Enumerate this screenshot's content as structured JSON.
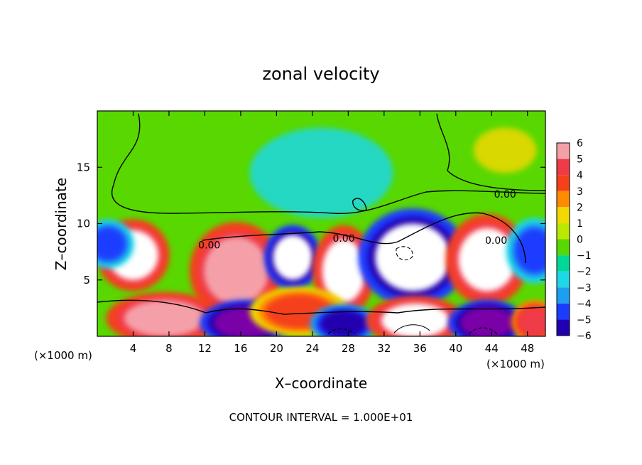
{
  "chart_data": {
    "type": "heatmap",
    "title": "zonal velocity",
    "xlabel": "X–coordinate",
    "ylabel": "Z–coordinate",
    "x_unit": "(×1000 m)",
    "z_unit": "(×1000 m)",
    "xlim": [
      0,
      50
    ],
    "ylim": [
      0,
      20
    ],
    "x_ticks": [
      4,
      8,
      12,
      16,
      20,
      24,
      28,
      32,
      36,
      40,
      44,
      48
    ],
    "y_ticks": [
      5,
      10,
      15
    ],
    "colorbar": {
      "levels": [
        6,
        5,
        4,
        3,
        2,
        1,
        0,
        -1,
        -2,
        -3,
        -4,
        -5,
        -6
      ],
      "colors": [
        "#f5a0a8",
        "#f03a48",
        "#f5401a",
        "#ff8c00",
        "#f0d800",
        "#bce800",
        "#58d800",
        "#00d898",
        "#1ed8e6",
        "#1e9ef0",
        "#1a3cff",
        "#2000b0",
        "#7a00a8"
      ]
    },
    "contour_labels": [
      {
        "text": "0.00",
        "x": 45.5,
        "z": 12.3
      },
      {
        "text": "0.00",
        "x": 27.5,
        "z": 8.4
      },
      {
        "text": "0.00",
        "x": 44.5,
        "z": 8.2
      },
      {
        "text": "0.00",
        "x": 12.5,
        "z": 7.8
      }
    ],
    "contour_interval": "CONTOUR INTERVAL = 1.000E+01",
    "cells": [
      {
        "x": 4,
        "z": 7.2,
        "rx": 2.8,
        "rz": 2.2,
        "v": 7
      },
      {
        "x": 15.5,
        "z": 5.8,
        "rx": 3.6,
        "rz": 3.0,
        "v": 6
      },
      {
        "x": 21.8,
        "z": 7.0,
        "rx": 2.2,
        "rz": 2.0,
        "v": -7
      },
      {
        "x": 27.5,
        "z": 5.8,
        "rx": 2.4,
        "rz": 2.8,
        "v": 7
      },
      {
        "x": 35.2,
        "z": 7.0,
        "rx": 4.2,
        "rz": 3.0,
        "v": -7
      },
      {
        "x": 43.5,
        "z": 6.8,
        "rx": 3.2,
        "rz": 2.8,
        "v": 7
      },
      {
        "x": 48.8,
        "z": 7.6,
        "rx": 2.2,
        "rz": 2.0,
        "v": -4
      },
      {
        "x": 1.2,
        "z": 8.2,
        "rx": 2.0,
        "rz": 1.5,
        "v": -4
      },
      {
        "x": 7.5,
        "z": 1.6,
        "rx": 4.5,
        "rz": 1.6,
        "v": 6
      },
      {
        "x": 16.5,
        "z": 1.2,
        "rx": 3.5,
        "rz": 1.4,
        "v": -6
      },
      {
        "x": 22.5,
        "z": 2.2,
        "rx": 3.8,
        "rz": 1.5,
        "v": 4
      },
      {
        "x": 27.5,
        "z": 1.1,
        "rx": 2.6,
        "rz": 1.2,
        "v": -5
      },
      {
        "x": 35.5,
        "z": 1.4,
        "rx": 3.8,
        "rz": 1.5,
        "v": 7
      },
      {
        "x": 43.5,
        "z": 1.2,
        "rx": 3.0,
        "rz": 1.4,
        "v": -6
      },
      {
        "x": 48.8,
        "z": 1.3,
        "rx": 1.8,
        "rz": 1.3,
        "v": 5
      },
      {
        "x": 45.5,
        "z": 16.5,
        "rx": 3.5,
        "rz": 2.0,
        "v": 1.5
      },
      {
        "x": 25,
        "z": 14.5,
        "rx": 8.0,
        "rz": 4.0,
        "v": -2
      }
    ]
  }
}
